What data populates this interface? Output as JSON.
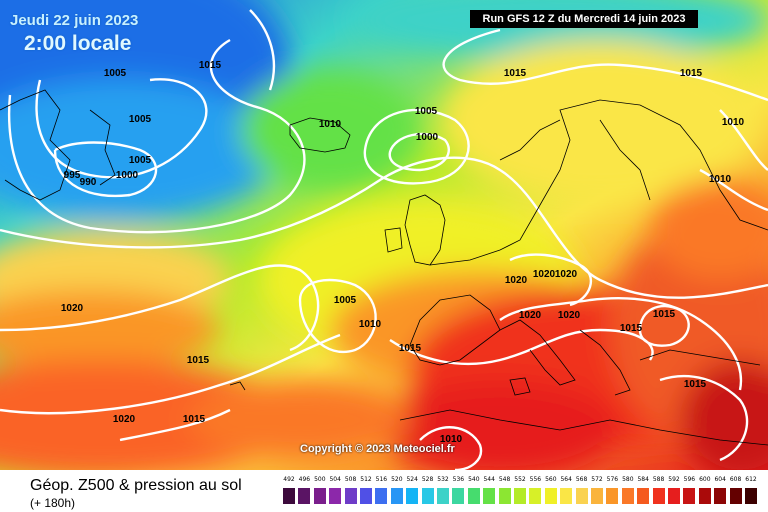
{
  "header": {
    "date": "Jeudi 22 juin 2023",
    "local_time": "2:00 locale",
    "run": "Run GFS 12 Z du Mercredi 14 juin 2023"
  },
  "copyright": "Copyright © 2023 Meteociel.fr",
  "footer": {
    "product": "Géop. Z500 & pression au sol",
    "forecast_hour": "(+ 180h)"
  },
  "isobars": [
    {
      "id": "i1",
      "value": "1015"
    },
    {
      "id": "i2",
      "value": "1005"
    },
    {
      "id": "i3",
      "value": "1005"
    },
    {
      "id": "i4",
      "value": "1005"
    },
    {
      "id": "i5",
      "value": "995"
    },
    {
      "id": "i6",
      "value": "990"
    },
    {
      "id": "i7",
      "value": "1000"
    },
    {
      "id": "i8",
      "value": "1010"
    },
    {
      "id": "i9",
      "value": "1005"
    },
    {
      "id": "i10",
      "value": "1000"
    },
    {
      "id": "i11",
      "value": "1015"
    },
    {
      "id": "i12",
      "value": "1015"
    },
    {
      "id": "i13",
      "value": "1010"
    },
    {
      "id": "i14",
      "value": "1010"
    },
    {
      "id": "i15",
      "value": "1020"
    },
    {
      "id": "i16",
      "value": "1020"
    },
    {
      "id": "i17",
      "value": "1020"
    },
    {
      "id": "i18",
      "value": "1020"
    },
    {
      "id": "i19",
      "value": "1020"
    },
    {
      "id": "i20",
      "value": "1005"
    },
    {
      "id": "i21",
      "value": "1010"
    },
    {
      "id": "i22",
      "value": "1015"
    },
    {
      "id": "i23",
      "value": "1015"
    },
    {
      "id": "i24",
      "value": "1015"
    },
    {
      "id": "i25",
      "value": "1015"
    },
    {
      "id": "i26",
      "value": "1020"
    },
    {
      "id": "i27",
      "value": "1015"
    },
    {
      "id": "i28",
      "value": "1010"
    },
    {
      "id": "i29",
      "value": "1020"
    },
    {
      "id": "i30",
      "value": "1015"
    }
  ],
  "legend": {
    "values": [
      "492",
      "496",
      "500",
      "504",
      "508",
      "512",
      "516",
      "520",
      "524",
      "528",
      "532",
      "536",
      "540",
      "544",
      "548",
      "552",
      "556",
      "560",
      "564",
      "568",
      "572",
      "576",
      "580",
      "584",
      "588",
      "592",
      "596",
      "600",
      "604",
      "608",
      "612"
    ],
    "colors": [
      "#3c0a3c",
      "#5a1464",
      "#7a1e8c",
      "#8c28aa",
      "#6e3cc8",
      "#5050e6",
      "#3c6ef0",
      "#2896f5",
      "#14b4f5",
      "#28c8e6",
      "#3cd2c8",
      "#3cd7a0",
      "#46dc6e",
      "#64e146",
      "#8ce632",
      "#b4eb28",
      "#d7f028",
      "#f0f028",
      "#fae646",
      "#fad250",
      "#fab43c",
      "#fa9628",
      "#fa7828",
      "#f55a1e",
      "#f0321e",
      "#e61e1e",
      "#c81414",
      "#aa0a0a",
      "#8c0505",
      "#640000",
      "#3c0000"
    ]
  }
}
